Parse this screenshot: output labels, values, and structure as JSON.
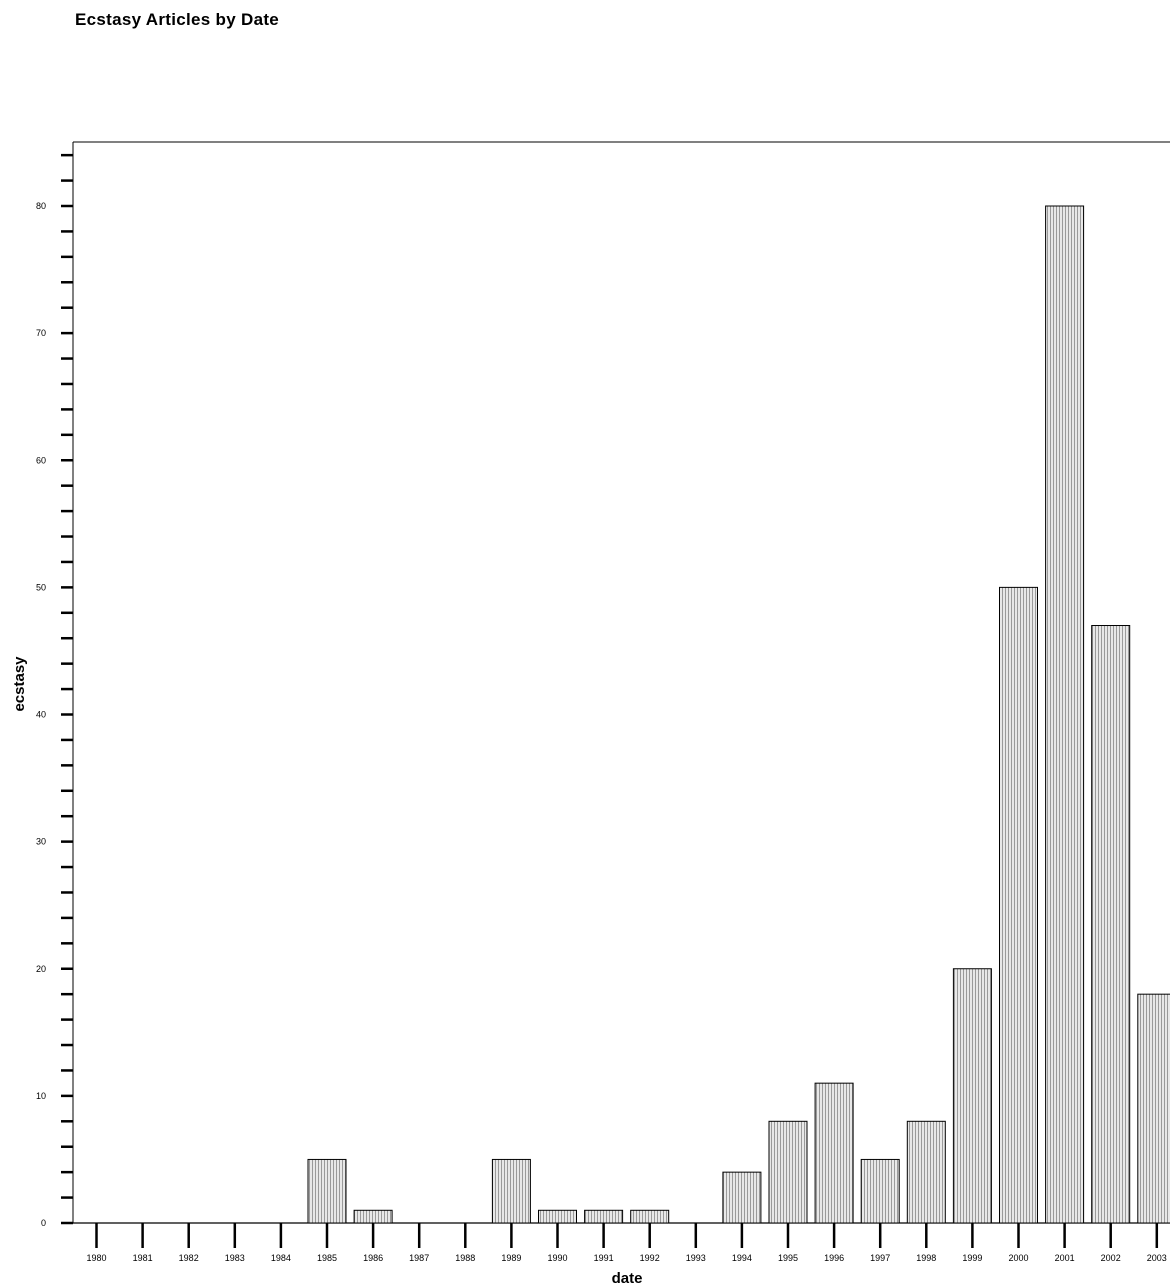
{
  "chart_data": {
    "type": "bar",
    "title": "Ecstasy Articles by Date",
    "xlabel": "date",
    "ylabel": "ecstasy",
    "categories": [
      "1980",
      "1981",
      "1982",
      "1983",
      "1984",
      "1985",
      "1986",
      "1987",
      "1988",
      "1989",
      "1990",
      "1991",
      "1992",
      "1993",
      "1994",
      "1995",
      "1996",
      "1997",
      "1998",
      "1999",
      "2000",
      "2001",
      "2002",
      "2003"
    ],
    "values": [
      0,
      0,
      0,
      0,
      0,
      5,
      1,
      0,
      0,
      5,
      1,
      1,
      1,
      0,
      4,
      8,
      11,
      5,
      8,
      20,
      50,
      80,
      47,
      18
    ],
    "ylim": [
      0,
      85
    ],
    "yticks": [
      0,
      10,
      20,
      30,
      40,
      50,
      60,
      70,
      80
    ],
    "grid": false,
    "legend": "none",
    "colors": {
      "bar_fill": "#e8e8e8",
      "bar_stripe": "#9a9a9a",
      "bar_stroke": "#000000",
      "axis": "#000000"
    }
  }
}
